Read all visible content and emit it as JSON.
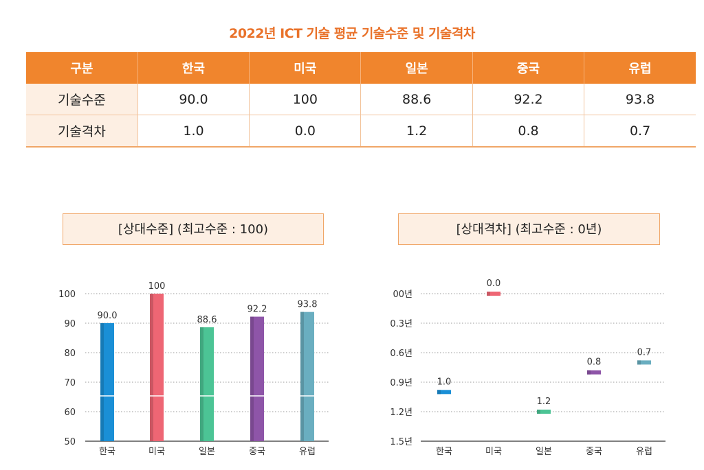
{
  "title": "2022년 ICT 기술 평균 기술수준 및 기술격차",
  "table": {
    "headers": [
      "구분",
      "한국",
      "미국",
      "일본",
      "중국",
      "유럽"
    ],
    "rows": [
      {
        "label": "기술수준",
        "values": [
          "90.0",
          "100",
          "88.6",
          "92.2",
          "93.8"
        ]
      },
      {
        "label": "기술격차",
        "values": [
          "1.0",
          "0.0",
          "1.2",
          "0.8",
          "0.7"
        ]
      }
    ]
  },
  "colors": {
    "korea": "#1a8fd6",
    "usa": "#ee6674",
    "japan": "#4cc495",
    "china": "#8e55a8",
    "europe": "#6aaec0",
    "accent": "#f0852d"
  },
  "chart_data": [
    {
      "type": "bar",
      "title": "[상대수준] (최고수준 : 100)",
      "categories": [
        "한국",
        "미국",
        "일본",
        "중국",
        "유럽"
      ],
      "values": [
        90.0,
        100,
        88.6,
        92.2,
        93.8
      ],
      "value_labels": [
        "90.0",
        "100",
        "88.6",
        "92.2",
        "93.8"
      ],
      "ylim": [
        50,
        100
      ],
      "yticks": [
        50,
        60,
        70,
        80,
        90,
        100
      ],
      "ytick_labels": [
        "50",
        "60",
        "70",
        "80",
        "90",
        "100"
      ],
      "grid": true
    },
    {
      "type": "dot",
      "title": "[상대격차] (최고수준 : 0년)",
      "categories": [
        "한국",
        "미국",
        "일본",
        "중국",
        "유럽"
      ],
      "values": [
        1.0,
        0.0,
        1.2,
        0.8,
        0.7
      ],
      "value_labels": [
        "1.0",
        "0.0",
        "1.2",
        "0.8",
        "0.7"
      ],
      "ylim": [
        0,
        1.5
      ],
      "inverted": true,
      "yticks": [
        0,
        0.3,
        0.6,
        0.9,
        1.2,
        1.5
      ],
      "ytick_labels": [
        "00년",
        "0.3년",
        "0.6년",
        "0.9년",
        "1.2년",
        "1.5년"
      ],
      "grid": true
    }
  ]
}
